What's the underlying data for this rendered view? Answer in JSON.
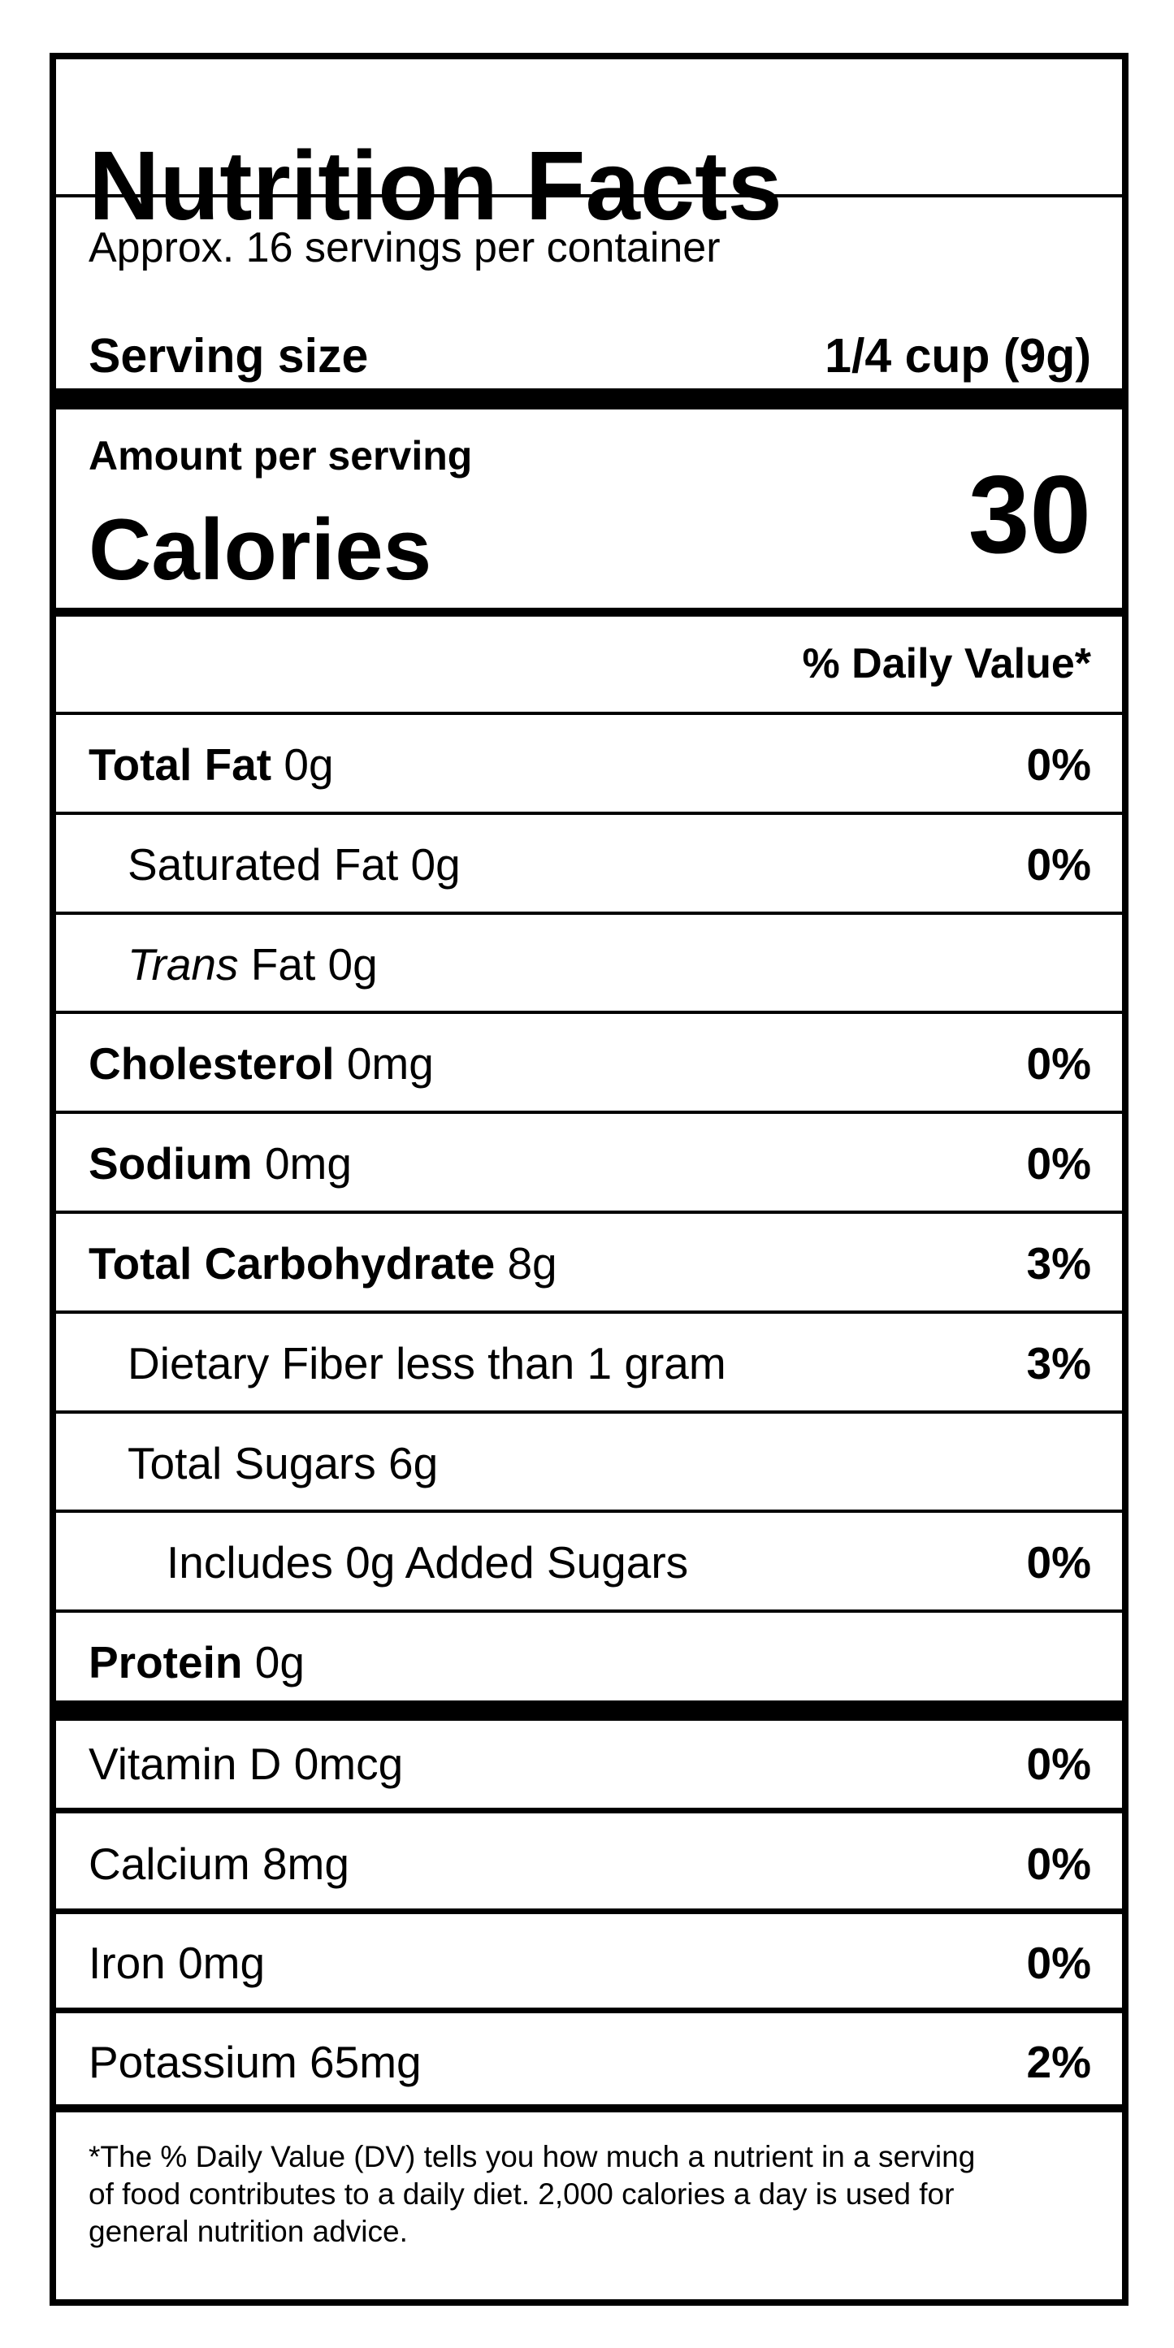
{
  "title": "Nutrition Facts",
  "servings": "Approx. 16 servings per container",
  "serving_size": {
    "label": "Serving size",
    "value": "1/4 cup (9g)"
  },
  "amount_per_serving": "Amount per serving",
  "calories": {
    "label": "Calories",
    "value": "30"
  },
  "dv_header": "% Daily Value*",
  "nutrients": [
    {
      "name": "Total Fat",
      "amount": "0g",
      "dv": "0%",
      "bold": true,
      "indent": 0
    },
    {
      "name": "Saturated Fat",
      "amount": "0g",
      "dv": "0%",
      "bold": false,
      "indent": 1
    },
    {
      "name_italic": "Trans",
      "name": "Fat",
      "amount": "0g",
      "bold": false,
      "indent": 1
    },
    {
      "name": "Cholesterol",
      "amount": "0mg",
      "dv": "0%",
      "bold": true,
      "indent": 0
    },
    {
      "name": "Sodium",
      "amount": "0mg",
      "dv": "0%",
      "bold": true,
      "indent": 0
    },
    {
      "name": "Total Carbohydrate",
      "amount": "8g",
      "dv": "3%",
      "bold": true,
      "indent": 0
    },
    {
      "name": "Dietary Fiber",
      "amount": "less than 1 gram",
      "dv": "3%",
      "bold": false,
      "indent": 1
    },
    {
      "name": "Total Sugars",
      "amount": "6g",
      "bold": false,
      "indent": 1
    },
    {
      "name": "Includes",
      "amount": "0g Added Sugars",
      "dv": "0%",
      "bold": false,
      "indent": 2
    },
    {
      "name": "Protein",
      "amount": "0g",
      "bold": true,
      "indent": 0
    }
  ],
  "vitamins": [
    {
      "name": "Vitamin D",
      "amount": "0mcg",
      "dv": "0%"
    },
    {
      "name": "Calcium",
      "amount": "8mg",
      "dv": "0%"
    },
    {
      "name": "Iron",
      "amount": "0mg",
      "dv": "0%"
    },
    {
      "name": "Potassium",
      "amount": "65mg",
      "dv": "2%"
    }
  ],
  "footnote": [
    "*The % Daily Value (DV) tells you how much a nutrient in a serving",
    "of food contributes to a daily diet. 2,000 calories a day is used for",
    "general nutrition advice."
  ]
}
